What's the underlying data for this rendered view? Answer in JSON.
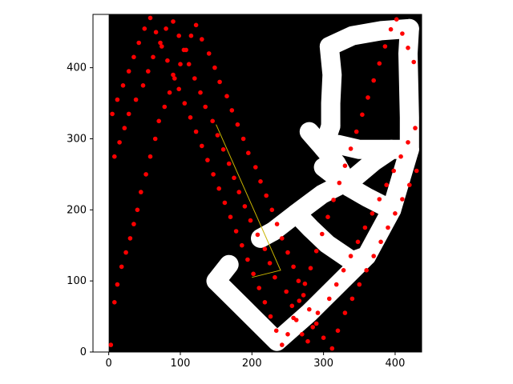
{
  "chart_data": {
    "type": "scatter",
    "title": "",
    "xlabel": "",
    "ylabel": "",
    "xlim": [
      -22,
      437
    ],
    "ylim": [
      0,
      475
    ],
    "x_ticks": [
      0,
      100,
      200,
      300,
      400
    ],
    "y_ticks": [
      0,
      100,
      200,
      300,
      400
    ],
    "grid": false,
    "background_region": {
      "x": [
        0,
        437
      ],
      "y": [
        0,
        475
      ],
      "color": "#000000"
    },
    "colors": {
      "points": "#ff0000",
      "path": "#ffffff",
      "line": "#c8b400",
      "outside": "#ffffff",
      "axes": "#000000"
    },
    "obstacle_path": [
      [
        170,
        107
      ],
      [
        185,
        128
      ],
      [
        185,
        128
      ],
      [
        210,
        165
      ],
      [
        210,
        165
      ],
      [
        240,
        197
      ],
      [
        265,
        222
      ],
      [
        265,
        222
      ],
      [
        285,
        240
      ],
      [
        300,
        258
      ],
      [
        300,
        258
      ],
      [
        315,
        280
      ],
      [
        335,
        300
      ],
      [
        265,
        222
      ],
      [
        240,
        210
      ],
      [
        215,
        200
      ],
      [
        215,
        200
      ],
      [
        230,
        170
      ],
      [
        250,
        150
      ],
      [
        250,
        150
      ],
      [
        290,
        130
      ],
      [
        330,
        110
      ],
      [
        330,
        110
      ],
      [
        355,
        90
      ],
      [
        375,
        75
      ],
      [
        375,
        75
      ],
      [
        395,
        55
      ],
      [
        410,
        35
      ]
    ],
    "white_path": [
      [
        [
          150,
          100
        ],
        [
          190,
          60
        ],
        [
          235,
          15
        ],
        [
          280,
          55
        ],
        [
          320,
          95
        ],
        [
          360,
          135
        ],
        [
          395,
          200
        ],
        [
          420,
          285
        ]
      ],
      [
        [
          150,
          100
        ],
        [
          168,
          123
        ]
      ],
      [
        [
          230,
          170
        ],
        [
          262,
          195
        ],
        [
          298,
          222
        ],
        [
          343,
          245
        ],
        [
          370,
          268
        ],
        [
          395,
          285
        ],
        [
          420,
          285
        ]
      ],
      [
        [
          262,
          195
        ],
        [
          282,
          174
        ],
        [
          305,
          152
        ],
        [
          340,
          128
        ],
        [
          360,
          135
        ]
      ],
      [
        [
          230,
          170
        ],
        [
          212,
          160
        ]
      ],
      [
        [
          395,
          200
        ],
        [
          360,
          218
        ],
        [
          336,
          232
        ],
        [
          300,
          260
        ]
      ],
      [
        [
          336,
          232
        ],
        [
          318,
          265
        ],
        [
          300,
          287
        ],
        [
          280,
          310
        ]
      ],
      [
        [
          300,
          287
        ],
        [
          320,
          292
        ],
        [
          350,
          285
        ],
        [
          395,
          285
        ]
      ],
      [
        [
          310,
          318
        ],
        [
          310,
          350
        ],
        [
          312,
          390
        ],
        [
          308,
          430
        ],
        [
          340,
          445
        ],
        [
          380,
          452
        ],
        [
          420,
          455
        ]
      ],
      [
        [
          420,
          455
        ],
        [
          418,
          420
        ],
        [
          420,
          330
        ],
        [
          420,
          285
        ]
      ],
      [
        [
          310,
          318
        ],
        [
          300,
          287
        ]
      ]
    ],
    "yellow_line": [
      [
        150,
        320
      ],
      [
        240,
        115
      ],
      [
        200,
        105
      ]
    ],
    "series": [
      {
        "x": [
          3,
          8,
          12,
          18,
          24,
          30,
          35,
          40,
          45,
          52,
          58,
          65,
          70,
          78,
          85,
          92,
          100,
          108,
          115,
          122,
          130,
          140,
          148,
          155,
          165,
          172,
          180,
          188,
          195,
          205,
          212,
          220,
          228,
          235,
          242,
          250,
          258,
          265,
          272,
          280,
          290,
          300,
          312,
          320,
          330,
          340,
          350,
          360,
          370,
          380,
          390,
          400,
          410,
          420,
          430,
          8,
          15,
          22,
          28,
          38,
          48,
          55,
          62,
          72,
          80,
          90,
          98,
          105,
          112,
          120,
          128,
          135,
          145,
          152,
          160,
          168,
          175,
          182,
          190,
          198,
          208,
          218,
          225,
          232,
          248,
          256,
          262,
          270,
          278,
          285,
          292,
          308,
          318,
          328,
          338,
          348,
          358,
          368,
          378,
          388,
          398,
          408,
          418,
          428,
          5,
          12,
          20,
          28,
          35,
          42,
          50,
          58,
          66,
          74,
          82,
          90,
          98,
          106,
          114,
          122,
          130,
          138,
          146,
          154,
          162,
          170,
          178,
          186,
          194,
          202,
          210,
          218,
          226,
          234,
          242,
          250,
          258,
          266,
          274,
          282,
          290,
          298,
          306,
          314,
          322,
          330,
          338,
          346,
          354,
          362,
          370,
          378,
          386,
          394,
          402,
          410,
          418,
          426
        ],
        "y": [
          10,
          70,
          95,
          120,
          140,
          160,
          180,
          200,
          225,
          250,
          275,
          300,
          325,
          345,
          365,
          385,
          405,
          425,
          445,
          460,
          440,
          420,
          400,
          380,
          360,
          340,
          320,
          300,
          280,
          260,
          240,
          220,
          200,
          180,
          160,
          140,
          120,
          100,
          80,
          60,
          40,
          20,
          5,
          30,
          55,
          75,
          95,
          115,
          135,
          155,
          175,
          195,
          215,
          235,
          255,
          275,
          295,
          315,
          335,
          355,
          375,
          395,
          415,
          435,
          455,
          465,
          445,
          425,
          405,
          385,
          365,
          345,
          325,
          305,
          285,
          265,
          245,
          225,
          205,
          185,
          165,
          145,
          125,
          105,
          85,
          65,
          45,
          25,
          15,
          35,
          55,
          75,
          95,
          115,
          135,
          155,
          175,
          195,
          215,
          235,
          255,
          275,
          295,
          315,
          335,
          355,
          375,
          395,
          415,
          435,
          455,
          470,
          450,
          430,
          410,
          390,
          370,
          350,
          330,
          310,
          290,
          270,
          250,
          230,
          210,
          190,
          170,
          150,
          130,
          110,
          90,
          70,
          50,
          30,
          10,
          25,
          48,
          72,
          96,
          118,
          142,
          166,
          190,
          214,
          238,
          262,
          286,
          310,
          334,
          358,
          382,
          406,
          430,
          454,
          468,
          448,
          428,
          408
        ]
      }
    ]
  }
}
